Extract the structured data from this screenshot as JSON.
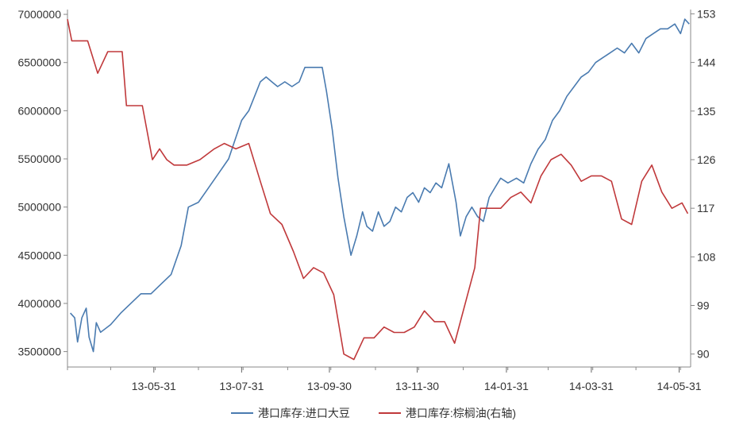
{
  "chart_data": {
    "type": "line",
    "x_tick_labels": [
      "13-05-31",
      "13-07-31",
      "13-09-30",
      "13-11-30",
      "14-01-31",
      "14-03-31",
      "14-05-31"
    ],
    "left_axis": {
      "ticks": [
        3500000,
        4000000,
        4500000,
        5000000,
        5500000,
        6000000,
        6500000,
        7000000
      ],
      "ylim": [
        3340000,
        7050000
      ]
    },
    "right_axis": {
      "ticks": [
        90,
        99,
        108,
        117,
        126,
        135,
        144,
        153
      ],
      "ylim": [
        87.6,
        153.8
      ]
    },
    "colors": {
      "soybean": "#4a7bb0",
      "palm": "#c0393b"
    },
    "series": [
      {
        "name": "港口库存:进口大豆",
        "axis": "left",
        "points": [
          [
            "2013-04-03",
            3900000
          ],
          [
            "2013-04-06",
            3850000
          ],
          [
            "2013-04-08",
            3600000
          ],
          [
            "2013-04-11",
            3850000
          ],
          [
            "2013-04-14",
            3950000
          ],
          [
            "2013-04-16",
            3650000
          ],
          [
            "2013-04-19",
            3500000
          ],
          [
            "2013-04-21",
            3800000
          ],
          [
            "2013-04-24",
            3700000
          ],
          [
            "2013-05-01",
            3780000
          ],
          [
            "2013-05-08",
            3900000
          ],
          [
            "2013-05-15",
            4000000
          ],
          [
            "2013-05-22",
            4100000
          ],
          [
            "2013-05-29",
            4100000
          ],
          [
            "2013-06-05",
            4200000
          ],
          [
            "2013-06-12",
            4300000
          ],
          [
            "2013-06-19",
            4600000
          ],
          [
            "2013-06-24",
            5000000
          ],
          [
            "2013-07-01",
            5050000
          ],
          [
            "2013-07-08",
            5200000
          ],
          [
            "2013-07-15",
            5350000
          ],
          [
            "2013-07-22",
            5500000
          ],
          [
            "2013-07-31",
            5900000
          ],
          [
            "2013-08-05",
            6000000
          ],
          [
            "2013-08-09",
            6150000
          ],
          [
            "2013-08-13",
            6300000
          ],
          [
            "2013-08-17",
            6350000
          ],
          [
            "2013-08-21",
            6300000
          ],
          [
            "2013-08-25",
            6250000
          ],
          [
            "2013-08-30",
            6300000
          ],
          [
            "2013-09-04",
            6250000
          ],
          [
            "2013-09-09",
            6300000
          ],
          [
            "2013-09-13",
            6450000
          ],
          [
            "2013-09-18",
            6450000
          ],
          [
            "2013-09-25",
            6450000
          ],
          [
            "2013-09-28",
            6200000
          ],
          [
            "2013-10-02",
            5800000
          ],
          [
            "2013-10-06",
            5300000
          ],
          [
            "2013-10-10",
            4900000
          ],
          [
            "2013-10-15",
            4500000
          ],
          [
            "2013-10-19",
            4700000
          ],
          [
            "2013-10-23",
            4950000
          ],
          [
            "2013-10-26",
            4800000
          ],
          [
            "2013-10-30",
            4750000
          ],
          [
            "2013-11-03",
            4950000
          ],
          [
            "2013-11-07",
            4800000
          ],
          [
            "2013-11-11",
            4850000
          ],
          [
            "2013-11-15",
            5000000
          ],
          [
            "2013-11-19",
            4950000
          ],
          [
            "2013-11-23",
            5100000
          ],
          [
            "2013-11-27",
            5150000
          ],
          [
            "2013-12-01",
            5050000
          ],
          [
            "2013-12-05",
            5200000
          ],
          [
            "2013-12-09",
            5150000
          ],
          [
            "2013-12-13",
            5250000
          ],
          [
            "2013-12-17",
            5200000
          ],
          [
            "2013-12-22",
            5450000
          ],
          [
            "2013-12-27",
            5050000
          ],
          [
            "2013-12-30",
            4700000
          ],
          [
            "2014-01-03",
            4900000
          ],
          [
            "2014-01-07",
            5000000
          ],
          [
            "2014-01-11",
            4900000
          ],
          [
            "2014-01-15",
            4850000
          ],
          [
            "2014-01-19",
            5100000
          ],
          [
            "2014-01-23",
            5200000
          ],
          [
            "2014-01-27",
            5300000
          ],
          [
            "2014-02-01",
            5250000
          ],
          [
            "2014-02-07",
            5300000
          ],
          [
            "2014-02-12",
            5250000
          ],
          [
            "2014-02-17",
            5450000
          ],
          [
            "2014-02-22",
            5600000
          ],
          [
            "2014-02-27",
            5700000
          ],
          [
            "2014-03-04",
            5900000
          ],
          [
            "2014-03-09",
            6000000
          ],
          [
            "2014-03-14",
            6150000
          ],
          [
            "2014-03-19",
            6250000
          ],
          [
            "2014-03-24",
            6350000
          ],
          [
            "2014-03-29",
            6400000
          ],
          [
            "2014-04-03",
            6500000
          ],
          [
            "2014-04-08",
            6550000
          ],
          [
            "2014-04-13",
            6600000
          ],
          [
            "2014-04-18",
            6650000
          ],
          [
            "2014-04-23",
            6600000
          ],
          [
            "2014-04-28",
            6700000
          ],
          [
            "2014-05-03",
            6600000
          ],
          [
            "2014-05-08",
            6750000
          ],
          [
            "2014-05-13",
            6800000
          ],
          [
            "2014-05-18",
            6850000
          ],
          [
            "2014-05-23",
            6850000
          ],
          [
            "2014-05-28",
            6900000
          ],
          [
            "2014-06-01",
            6800000
          ],
          [
            "2014-06-04",
            6950000
          ],
          [
            "2014-06-07",
            6900000
          ]
        ]
      },
      {
        "name": "港口库存:棕榈油(右轴)",
        "axis": "right",
        "points": [
          [
            "2013-04-01",
            152
          ],
          [
            "2013-04-04",
            148
          ],
          [
            "2013-04-15",
            148
          ],
          [
            "2013-04-22",
            142
          ],
          [
            "2013-04-29",
            146
          ],
          [
            "2013-05-09",
            146
          ],
          [
            "2013-05-12",
            136
          ],
          [
            "2013-05-23",
            136
          ],
          [
            "2013-05-30",
            126
          ],
          [
            "2013-06-04",
            128
          ],
          [
            "2013-06-09",
            126
          ],
          [
            "2013-06-14",
            125
          ],
          [
            "2013-06-23",
            125
          ],
          [
            "2013-07-02",
            126
          ],
          [
            "2013-07-12",
            128
          ],
          [
            "2013-07-19",
            129
          ],
          [
            "2013-07-27",
            128
          ],
          [
            "2013-08-05",
            129
          ],
          [
            "2013-08-13",
            122
          ],
          [
            "2013-08-20",
            116
          ],
          [
            "2013-08-28",
            114
          ],
          [
            "2013-09-05",
            109
          ],
          [
            "2013-09-12",
            104
          ],
          [
            "2013-09-19",
            106
          ],
          [
            "2013-09-26",
            105
          ],
          [
            "2013-10-03",
            101
          ],
          [
            "2013-10-10",
            90
          ],
          [
            "2013-10-17",
            89
          ],
          [
            "2013-10-24",
            93
          ],
          [
            "2013-10-31",
            93
          ],
          [
            "2013-11-07",
            95
          ],
          [
            "2013-11-14",
            94
          ],
          [
            "2013-11-21",
            94
          ],
          [
            "2013-11-28",
            95
          ],
          [
            "2013-12-05",
            98
          ],
          [
            "2013-12-12",
            96
          ],
          [
            "2013-12-19",
            96
          ],
          [
            "2013-12-26",
            92
          ],
          [
            "2014-01-02",
            99
          ],
          [
            "2014-01-09",
            106
          ],
          [
            "2014-01-13",
            117
          ],
          [
            "2014-01-20",
            117
          ],
          [
            "2014-01-27",
            117
          ],
          [
            "2014-02-03",
            119
          ],
          [
            "2014-02-10",
            120
          ],
          [
            "2014-02-17",
            118
          ],
          [
            "2014-02-24",
            123
          ],
          [
            "2014-03-03",
            126
          ],
          [
            "2014-03-10",
            127
          ],
          [
            "2014-03-17",
            125
          ],
          [
            "2014-03-24",
            122
          ],
          [
            "2014-03-31",
            123
          ],
          [
            "2014-04-07",
            123
          ],
          [
            "2014-04-14",
            122
          ],
          [
            "2014-04-21",
            115
          ],
          [
            "2014-04-28",
            114
          ],
          [
            "2014-05-05",
            122
          ],
          [
            "2014-05-12",
            125
          ],
          [
            "2014-05-19",
            120
          ],
          [
            "2014-05-26",
            117
          ],
          [
            "2014-06-02",
            118
          ],
          [
            "2014-06-06",
            116
          ]
        ]
      }
    ]
  }
}
